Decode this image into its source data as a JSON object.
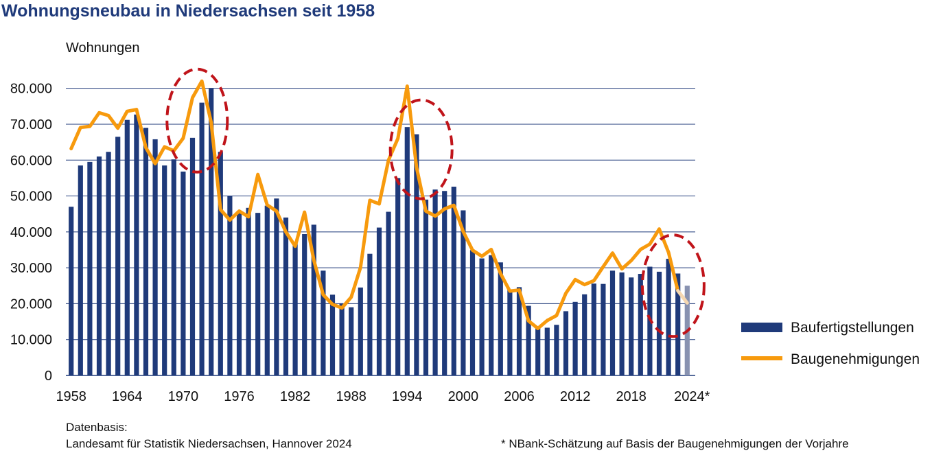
{
  "title": "Wohnungsneubau in Niedersachsen seit 1958",
  "source_label": "Datenbasis:",
  "source_text": "Landesamt für Statistik Niedersachsen, Hannover 2024",
  "footnote": "* NBank-Schätzung auf Basis der Baugenehmigungen der Vorjahre",
  "colors": {
    "bars": "#1f3a7a",
    "bars_estimate": "#8892b0",
    "line": "#f79a0d",
    "line_estimate": "#f5d7b0",
    "grid": "#1f3a7a",
    "circle": "#c0141a"
  },
  "chart_data": {
    "type": "bar",
    "ylabel": "Wohnungen",
    "ylim": [
      0,
      85000
    ],
    "yticks": [
      0,
      10000,
      20000,
      30000,
      40000,
      50000,
      60000,
      70000,
      80000
    ],
    "ytick_labels": [
      "0",
      "10.000",
      "20.000",
      "30.000",
      "40.000",
      "50.000",
      "60.000",
      "70.000",
      "80.000"
    ],
    "xticks": [
      1958,
      1964,
      1970,
      1976,
      1982,
      1988,
      1994,
      2000,
      2006,
      2012,
      2018,
      2024
    ],
    "xtick_labels": [
      "1958",
      "1964",
      "1970",
      "1976",
      "1982",
      "1988",
      "1994",
      "2000",
      "2006",
      "2012",
      "2018",
      "2024*"
    ],
    "legend_position": "right",
    "grid": true,
    "estimate_year": 2024,
    "highlight_circles": [
      {
        "year_center": 1971.5,
        "value_center": 71000
      },
      {
        "year_center": 1995.5,
        "value_center": 63000
      },
      {
        "year_center": 2022.5,
        "value_center": 25000
      }
    ],
    "series": [
      {
        "name": "Baufertigstellungen",
        "style": "bar",
        "x": [
          1958,
          1959,
          1960,
          1961,
          1962,
          1963,
          1964,
          1965,
          1966,
          1967,
          1968,
          1969,
          1970,
          1971,
          1972,
          1973,
          1974,
          1975,
          1976,
          1977,
          1978,
          1979,
          1980,
          1981,
          1982,
          1983,
          1984,
          1985,
          1986,
          1987,
          1988,
          1989,
          1990,
          1991,
          1992,
          1993,
          1994,
          1995,
          1996,
          1997,
          1998,
          1999,
          2000,
          2001,
          2002,
          2003,
          2004,
          2005,
          2006,
          2007,
          2008,
          2009,
          2010,
          2011,
          2012,
          2013,
          2014,
          2015,
          2016,
          2017,
          2018,
          2019,
          2020,
          2021,
          2022,
          2023,
          2024
        ],
        "values": [
          47000,
          58500,
          59500,
          61000,
          62300,
          66500,
          71200,
          72700,
          69000,
          65800,
          58500,
          60200,
          56800,
          66200,
          76000,
          80000,
          62300,
          50000,
          45800,
          46700,
          45300,
          47300,
          49300,
          44000,
          36800,
          39400,
          42000,
          29200,
          22500,
          20100,
          19000,
          24500,
          33900,
          41200,
          45600,
          55000,
          69200,
          67200,
          49000,
          51800,
          51400,
          52600,
          46000,
          34900,
          32600,
          33500,
          31500,
          24000,
          24600,
          19400,
          13700,
          13300,
          14100,
          17900,
          20500,
          22600,
          25600,
          25500,
          29200,
          28700,
          27300,
          28300,
          30300,
          28900,
          32500,
          28400,
          25000
        ]
      },
      {
        "name": "Baugenehmigungen",
        "style": "line",
        "x": [
          1958,
          1959,
          1960,
          1961,
          1962,
          1963,
          1964,
          1965,
          1966,
          1967,
          1968,
          1969,
          1970,
          1971,
          1972,
          1973,
          1974,
          1975,
          1976,
          1977,
          1978,
          1979,
          1980,
          1981,
          1982,
          1983,
          1984,
          1985,
          1986,
          1987,
          1988,
          1989,
          1990,
          1991,
          1992,
          1993,
          1994,
          1995,
          1996,
          1997,
          1998,
          1999,
          2000,
          2001,
          2002,
          2003,
          2004,
          2005,
          2006,
          2007,
          2008,
          2009,
          2010,
          2011,
          2012,
          2013,
          2014,
          2015,
          2016,
          2017,
          2018,
          2019,
          2020,
          2021,
          2022,
          2023,
          2024
        ],
        "values": [
          63200,
          69100,
          69400,
          73200,
          72400,
          68900,
          73600,
          74100,
          63500,
          59000,
          63700,
          62600,
          66100,
          77400,
          82000,
          70500,
          46200,
          43300,
          45800,
          44200,
          56000,
          47500,
          45800,
          40000,
          36000,
          45500,
          32100,
          22500,
          19800,
          18800,
          21800,
          30100,
          48800,
          47800,
          60000,
          66000,
          80600,
          58000,
          45800,
          44400,
          46400,
          47400,
          40100,
          34900,
          33200,
          35100,
          28400,
          23500,
          23800,
          15200,
          13100,
          15300,
          16700,
          22900,
          26700,
          25300,
          26400,
          30300,
          34100,
          29700,
          32000,
          35100,
          36600,
          40800,
          34300,
          23600,
          20200
        ]
      }
    ]
  }
}
